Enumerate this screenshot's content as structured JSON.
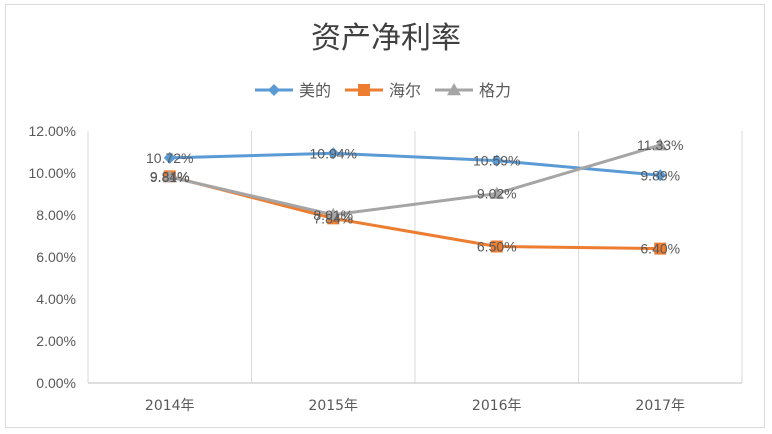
{
  "chart_data": {
    "type": "line",
    "title": "资产净利率",
    "xlabel": "",
    "ylabel": "",
    "categories": [
      "2014年",
      "2015年",
      "2016年",
      "2017年"
    ],
    "ylim": [
      0,
      12
    ],
    "yticks": [
      "0.00%",
      "2.00%",
      "4.00%",
      "6.00%",
      "8.00%",
      "10.00%",
      "12.00%"
    ],
    "legend_position": "top-center",
    "grid": "vertical",
    "series": [
      {
        "name": "美的",
        "color": "#5B9BD5",
        "marker": "diamond",
        "values": [
          10.72,
          10.94,
          10.59,
          9.89
        ],
        "labels": [
          "10.72%",
          "10.94%",
          "10.59%",
          "9.89%"
        ]
      },
      {
        "name": "海尔",
        "color": "#ED7D31",
        "marker": "square",
        "values": [
          9.84,
          7.84,
          6.5,
          6.4
        ],
        "labels": [
          "9.84%",
          "7.84%",
          "6.50%",
          "6.40%"
        ]
      },
      {
        "name": "格力",
        "color": "#A5A5A5",
        "marker": "triangle",
        "values": [
          9.81,
          8.01,
          9.02,
          11.33
        ],
        "labels": [
          "9.81%",
          "8.01%",
          "9.02%",
          "11.33%"
        ]
      }
    ]
  }
}
